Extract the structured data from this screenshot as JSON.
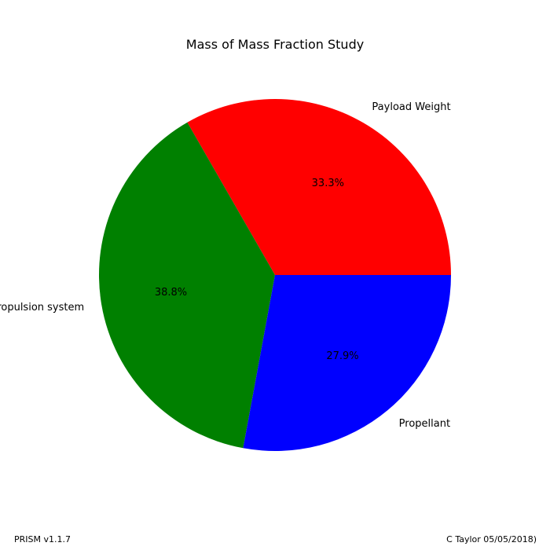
{
  "chart_data": {
    "type": "pie",
    "title": "Mass of Mass Fraction Study",
    "start_angle_deg": 0,
    "direction": "counterclockwise",
    "slices": [
      {
        "label": "Payload Weight",
        "value": 33.3,
        "pct_label": "33.3%",
        "color": "#ff0000"
      },
      {
        "label": "Propulsion system",
        "value": 38.8,
        "pct_label": "38.8%",
        "color": "#008000"
      },
      {
        "label": "Propellant",
        "value": 27.9,
        "pct_label": "27.9%",
        "color": "#0000ff"
      }
    ]
  },
  "footer": {
    "left": "PRISM v1.1.7",
    "right": "C Taylor 05/05/2018)"
  }
}
